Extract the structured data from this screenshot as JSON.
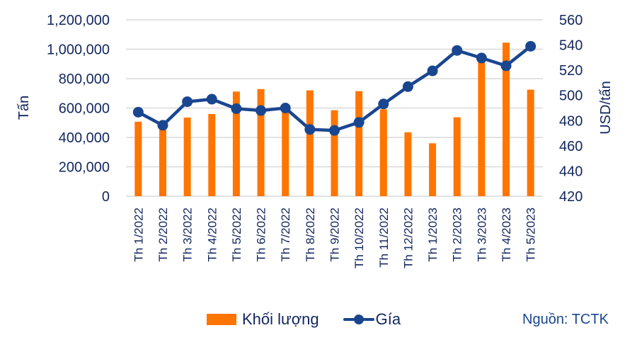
{
  "chart_data": {
    "type": "bar+line",
    "title": "",
    "categories": [
      "Th 1/2022",
      "Th 2/2022",
      "Th 3/2022",
      "Th 4/2022",
      "Th 5/2022",
      "Th 6/2022",
      "Th 7/2022",
      "Th 8/2022",
      "Th 9/2022",
      "Th 10/2022",
      "Th 11/2022",
      "Th 12/2022",
      "Th 1/2023",
      "Th 2/2023",
      "Th 3/2023",
      "Th 4/2023",
      "Th 5/2023"
    ],
    "series": [
      {
        "name": "Khối lượng",
        "type": "bar",
        "axis": "left",
        "color": "#ff7500",
        "values": [
          507000,
          470000,
          535000,
          559000,
          712000,
          729000,
          590000,
          720000,
          585000,
          715000,
          591000,
          435000,
          360000,
          537000,
          915000,
          1045000,
          725000
        ]
      },
      {
        "name": "Gía",
        "type": "line",
        "axis": "right",
        "color": "#1a4690",
        "values": [
          486.7,
          476.3,
          495,
          497,
          489.5,
          488,
          490,
          473,
          472.2,
          478.6,
          493.2,
          507,
          519.5,
          535.7,
          529.7,
          523.5,
          539
        ]
      }
    ],
    "ylabel_left": "Tấn",
    "ylabel_right": "USD/tấn",
    "ylim_left": [
      0,
      1200000
    ],
    "ylim_right": [
      420,
      560
    ],
    "yticks_left": [
      "0",
      "200,000",
      "400,000",
      "600,000",
      "800,000",
      "1,000,000",
      "1,200,000"
    ],
    "yticks_right": [
      "420",
      "440",
      "460",
      "480",
      "500",
      "520",
      "540",
      "560"
    ],
    "grid": true,
    "legend_position": "bottom"
  },
  "legend": {
    "bar_label": "Khối lượng",
    "line_label": "Gía"
  },
  "source": "Nguồn: TCTK",
  "colors": {
    "bar": "#ff7500",
    "line": "#1a4690",
    "text": "#12265e",
    "grid": "#d9d9d9"
  }
}
